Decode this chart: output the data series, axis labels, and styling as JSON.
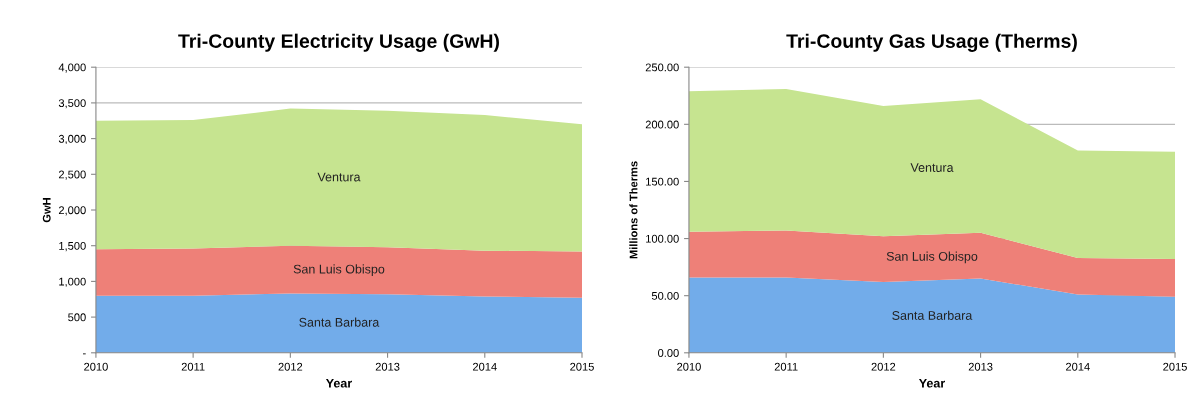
{
  "chart_data": [
    {
      "type": "area",
      "stacked": true,
      "title": "Tri-County Electricity Usage (GwH)",
      "xlabel": "Year",
      "ylabel": "GwH",
      "x": [
        2010,
        2011,
        2012,
        2013,
        2014,
        2015
      ],
      "series": [
        {
          "name": "Santa Barbara",
          "color": "#72acea",
          "values": [
            800,
            800,
            830,
            820,
            790,
            770
          ]
        },
        {
          "name": "San Luis Obispo",
          "color": "#ee8078",
          "values": [
            650,
            660,
            670,
            660,
            640,
            650
          ]
        },
        {
          "name": "Ventura",
          "color": "#c6e490",
          "values": [
            1800,
            1800,
            1920,
            1910,
            1900,
            1780
          ]
        }
      ],
      "xlim": [
        2010,
        2015
      ],
      "xticks": [
        2010,
        2011,
        2012,
        2013,
        2014,
        2015
      ],
      "ylim": [
        0,
        4000
      ],
      "yticks": [
        {
          "value": 0,
          "label": "-"
        },
        500,
        {
          "value": 1000,
          "label": "1,000"
        },
        {
          "value": 1500,
          "label": "1,500"
        },
        {
          "value": 2000,
          "label": "2,000"
        },
        {
          "value": 2500,
          "label": "2,500"
        },
        {
          "value": 3000,
          "label": "3,000"
        },
        {
          "value": 3500,
          "label": "3,500"
        },
        {
          "value": 4000,
          "label": "4,000"
        }
      ],
      "grid": "y",
      "legend": false
    },
    {
      "type": "area",
      "stacked": true,
      "title": "Tri-County Gas Usage (Therms)",
      "xlabel": "Year",
      "ylabel": "Millions of Therms",
      "x": [
        2010,
        2011,
        2012,
        2013,
        2014,
        2015
      ],
      "series": [
        {
          "name": "Santa Barbara",
          "color": "#72acea",
          "values": [
            66,
            66,
            62,
            65,
            51,
            49
          ]
        },
        {
          "name": "San Luis Obispo",
          "color": "#ee8078",
          "values": [
            40,
            41,
            40,
            40,
            32,
            33
          ]
        },
        {
          "name": "Ventura",
          "color": "#c6e490",
          "values": [
            123,
            124,
            114,
            117,
            94,
            94
          ]
        }
      ],
      "xlim": [
        2010,
        2015
      ],
      "xticks": [
        2010,
        2011,
        2012,
        2013,
        2014,
        2015
      ],
      "ylim": [
        0,
        250
      ],
      "yticks": [
        {
          "value": 0,
          "label": "0.00"
        },
        {
          "value": 50,
          "label": "50.00"
        },
        {
          "value": 100,
          "label": "100.00"
        },
        {
          "value": 150,
          "label": "150.00"
        },
        {
          "value": 200,
          "label": "200.00"
        },
        {
          "value": 250,
          "label": "250.00"
        }
      ],
      "grid": "y",
      "legend": false
    }
  ]
}
